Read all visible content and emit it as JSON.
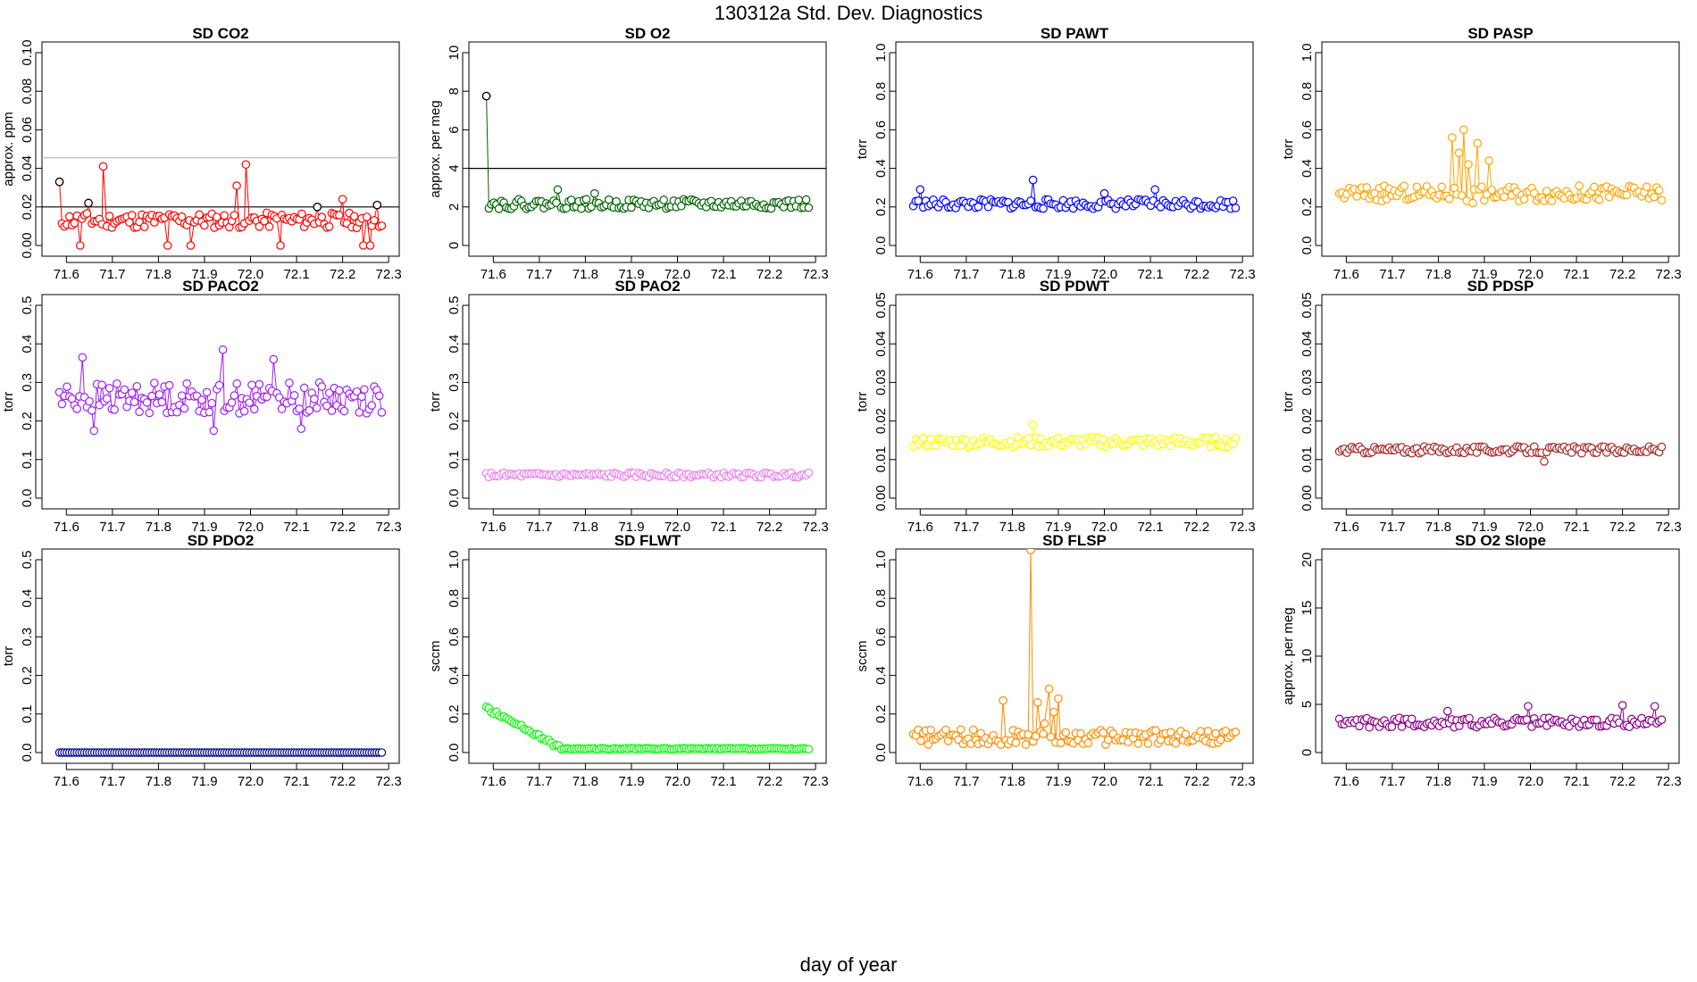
{
  "title": "130312a   Std. Dev. Diagnostics",
  "xlabel": "day of year",
  "x_ticks": [
    71.6,
    71.7,
    71.8,
    71.9,
    72.0,
    72.1,
    72.2,
    72.3
  ],
  "x_tick_labels": [
    "71.6",
    "71.7",
    "71.8",
    "71.9",
    "72.0",
    "72.1",
    "72.2",
    "72.3"
  ],
  "x_range": [
    71.58,
    72.29
  ],
  "chart_data": [
    {
      "type": "scatter",
      "title": "SD CO2",
      "ylabel": "approx. ppm",
      "color": "#ff0000",
      "ylim": [
        0,
        0.1
      ],
      "yticks": [
        0,
        0.02,
        0.04,
        0.06,
        0.08,
        0.1
      ],
      "ytick_labels": [
        "0.00",
        "0.02",
        "0.04",
        "0.06",
        "0.08",
        "0.10"
      ],
      "hlines": [
        {
          "y": 0.02,
          "color": "#000000"
        },
        {
          "y": 0.0455,
          "color": "#bbbbbb"
        }
      ],
      "gen": {
        "base": 0.013,
        "amp": 0.004,
        "seed": 11
      },
      "points": [
        [
          71.585,
          0.033
        ],
        [
          71.63,
          0.0
        ],
        [
          71.648,
          0.022
        ],
        [
          71.68,
          0.041
        ],
        [
          71.82,
          0.0
        ],
        [
          71.87,
          0.0
        ],
        [
          71.97,
          0.031
        ],
        [
          71.99,
          0.042
        ],
        [
          72.065,
          0.0
        ],
        [
          72.145,
          0.02
        ],
        [
          72.2,
          0.024
        ],
        [
          72.245,
          0.0
        ],
        [
          72.26,
          0.0
        ],
        [
          72.275,
          0.021
        ]
      ],
      "black_points": [
        [
          71.585,
          0.033
        ],
        [
          71.648,
          0.022
        ],
        [
          72.145,
          0.02
        ],
        [
          72.275,
          0.021
        ]
      ]
    },
    {
      "type": "scatter",
      "title": "SD O2",
      "ylabel": "approx. per meg",
      "color": "#006400",
      "ylim": [
        0,
        10
      ],
      "yticks": [
        0,
        2,
        4,
        6,
        8,
        10
      ],
      "ytick_labels": [
        "0",
        "2",
        "4",
        "6",
        "8",
        "10"
      ],
      "hlines": [
        {
          "y": 4,
          "color": "#000000"
        }
      ],
      "gen": {
        "base": 2.15,
        "amp": 0.25,
        "seed": 22
      },
      "points": [
        [
          71.585,
          7.75
        ],
        [
          71.74,
          2.9
        ],
        [
          71.82,
          2.7
        ]
      ],
      "black_points": [
        [
          71.585,
          7.75
        ]
      ]
    },
    {
      "type": "scatter",
      "title": "SD PAWT",
      "ylabel": "torr",
      "color": "#0000ff",
      "ylim": [
        0,
        1
      ],
      "yticks": [
        0,
        0.2,
        0.4,
        0.6,
        0.8,
        1
      ],
      "ytick_labels": [
        "0.0",
        "0.2",
        "0.4",
        "0.6",
        "0.8",
        "1.0"
      ],
      "hlines": [],
      "gen": {
        "base": 0.215,
        "amp": 0.025,
        "seed": 33
      },
      "points": [
        [
          71.6,
          0.29
        ],
        [
          71.845,
          0.34
        ],
        [
          72.0,
          0.27
        ],
        [
          72.11,
          0.29
        ]
      ],
      "black_points": []
    },
    {
      "type": "scatter",
      "title": "SD PASP",
      "ylabel": "torr",
      "color": "#ffa500",
      "ylim": [
        0,
        1
      ],
      "yticks": [
        0,
        0.2,
        0.4,
        0.6,
        0.8,
        1
      ],
      "ytick_labels": [
        "0.0",
        "0.2",
        "0.4",
        "0.6",
        "0.8",
        "1.0"
      ],
      "hlines": [],
      "gen": {
        "base": 0.27,
        "amp": 0.04,
        "seed": 44
      },
      "points": [
        [
          71.83,
          0.56
        ],
        [
          71.845,
          0.48
        ],
        [
          71.855,
          0.6
        ],
        [
          71.865,
          0.42
        ],
        [
          71.875,
          0.22
        ],
        [
          71.885,
          0.53
        ],
        [
          71.91,
          0.44
        ]
      ],
      "black_points": []
    },
    {
      "type": "scatter",
      "title": "SD PACO2",
      "ylabel": "torr",
      "color": "#a020f0",
      "ylim": [
        0,
        0.5
      ],
      "yticks": [
        0,
        0.1,
        0.2,
        0.3,
        0.4,
        0.5
      ],
      "ytick_labels": [
        "0.0",
        "0.1",
        "0.2",
        "0.3",
        "0.4",
        "0.5"
      ],
      "hlines": [],
      "gen": {
        "base": 0.26,
        "amp": 0.04,
        "seed": 55
      },
      "points": [
        [
          71.635,
          0.365
        ],
        [
          71.66,
          0.175
        ],
        [
          71.94,
          0.385
        ],
        [
          71.92,
          0.175
        ],
        [
          72.05,
          0.36
        ],
        [
          72.11,
          0.18
        ]
      ],
      "black_points": []
    },
    {
      "type": "scatter",
      "title": "SD PAO2",
      "ylabel": "torr",
      "color": "#ee82ee",
      "ylim": [
        0,
        0.5
      ],
      "yticks": [
        0,
        0.1,
        0.2,
        0.3,
        0.4,
        0.5
      ],
      "ytick_labels": [
        "0.0",
        "0.1",
        "0.2",
        "0.3",
        "0.4",
        "0.5"
      ],
      "hlines": [],
      "gen": {
        "base": 0.06,
        "amp": 0.006,
        "seed": 66
      },
      "points": [],
      "black_points": []
    },
    {
      "type": "scatter",
      "title": "SD PDWT",
      "ylabel": "torr",
      "color": "#ffff00",
      "ylim": [
        0,
        0.05
      ],
      "yticks": [
        0,
        0.01,
        0.02,
        0.03,
        0.04,
        0.05
      ],
      "ytick_labels": [
        "0.00",
        "0.01",
        "0.02",
        "0.03",
        "0.04",
        "0.05"
      ],
      "hlines": [],
      "gen": {
        "base": 0.0145,
        "amp": 0.0013,
        "seed": 77
      },
      "points": [
        [
          71.845,
          0.019
        ]
      ],
      "black_points": []
    },
    {
      "type": "scatter",
      "title": "SD PDSP",
      "ylabel": "torr",
      "color": "#a52a2a",
      "ylim": [
        0,
        0.05
      ],
      "yticks": [
        0,
        0.01,
        0.02,
        0.03,
        0.04,
        0.05
      ],
      "ytick_labels": [
        "0.00",
        "0.01",
        "0.02",
        "0.03",
        "0.04",
        "0.05"
      ],
      "hlines": [],
      "gen": {
        "base": 0.0125,
        "amp": 0.0009,
        "seed": 88
      },
      "points": [
        [
          72.03,
          0.0095
        ]
      ],
      "black_points": []
    },
    {
      "type": "scatter",
      "title": "SD PDO2",
      "ylabel": "torr",
      "color": "#00008b",
      "ylim": [
        0,
        0.5
      ],
      "yticks": [
        0,
        0.1,
        0.2,
        0.3,
        0.4,
        0.5
      ],
      "ytick_labels": [
        "0.0",
        "0.1",
        "0.2",
        "0.3",
        "0.4",
        "0.5"
      ],
      "hlines": [],
      "gen": {
        "base": 0.0,
        "amp": 0.0,
        "seed": 99
      },
      "points": [],
      "black_points": []
    },
    {
      "type": "scatter",
      "title": "SD FLWT",
      "ylabel": "sccm",
      "color": "#00ff00",
      "ylim": [
        0,
        1
      ],
      "yticks": [
        0,
        0.2,
        0.4,
        0.6,
        0.8,
        1
      ],
      "ytick_labels": [
        "0.0",
        "0.2",
        "0.4",
        "0.6",
        "0.8",
        "1.0"
      ],
      "hlines": [],
      "gen": {
        "base": 0.02,
        "amp": 0.003,
        "seed": 111,
        "decay": {
          "start": 0.23,
          "end": 71.75
        }
      },
      "points": [],
      "black_points": []
    },
    {
      "type": "scatter",
      "title": "SD FLSP",
      "ylabel": "sccm",
      "color": "#ff8c00",
      "ylim": [
        0,
        1
      ],
      "yticks": [
        0,
        0.2,
        0.4,
        0.6,
        0.8,
        1
      ],
      "ytick_labels": [
        "0.0",
        "0.2",
        "0.4",
        "0.6",
        "0.8",
        "1.0"
      ],
      "hlines": [],
      "gen": {
        "base": 0.08,
        "amp": 0.04,
        "seed": 122
      },
      "points": [
        [
          71.78,
          0.27
        ],
        [
          71.84,
          1.05
        ],
        [
          71.855,
          0.26
        ],
        [
          71.88,
          0.33
        ],
        [
          71.89,
          0.21
        ],
        [
          71.9,
          0.28
        ],
        [
          71.87,
          0.15
        ]
      ],
      "black_points": []
    },
    {
      "type": "scatter",
      "title": "SD O2 Slope",
      "ylabel": "approx. per meg",
      "color": "#8b008b",
      "ylim": [
        0,
        20
      ],
      "yticks": [
        0,
        5,
        10,
        15,
        20
      ],
      "ytick_labels": [
        "0",
        "5",
        "10",
        "15",
        "20"
      ],
      "hlines": [],
      "gen": {
        "base": 3.1,
        "amp": 0.5,
        "seed": 133
      },
      "points": [
        [
          72.2,
          4.9
        ],
        [
          72.27,
          4.8
        ],
        [
          71.82,
          4.3
        ],
        [
          71.995,
          4.8
        ]
      ],
      "black_points": []
    }
  ]
}
